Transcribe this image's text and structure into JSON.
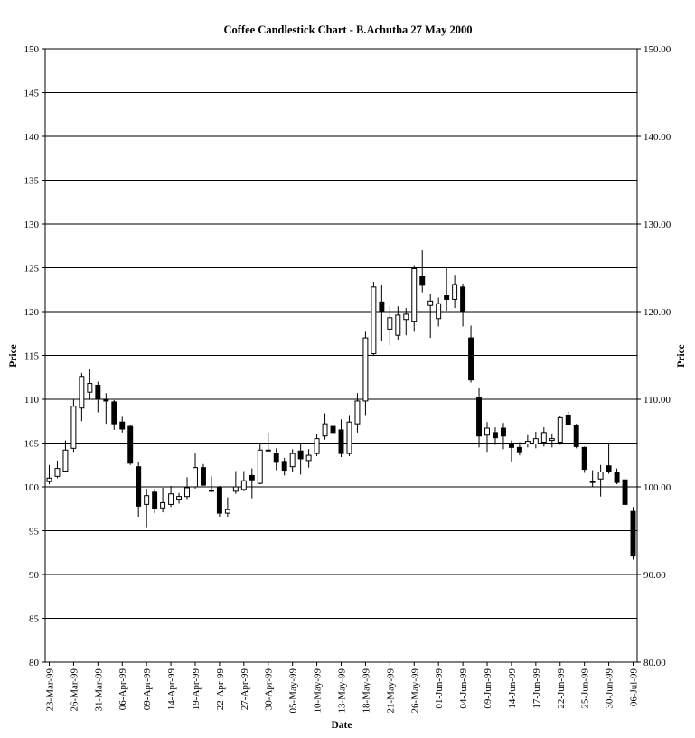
{
  "chart_data": {
    "type": "candlestick",
    "title": "Coffee Candlestick Chart - B.Achutha 27 May 2000",
    "xlabel": "Date",
    "ylabel_left": "Price",
    "ylabel_right": "Price",
    "ylim": [
      80,
      150
    ],
    "ytick_step": 5,
    "left_tick_labels": [
      "80",
      "85",
      "90",
      "95",
      "100",
      "105",
      "110",
      "115",
      "120",
      "125",
      "130",
      "135",
      "140",
      "145",
      "150"
    ],
    "right_tick_labels": [
      "80.00",
      "90.00",
      "100.00",
      "110.00",
      "120.00",
      "130.00",
      "140.00",
      "150.00"
    ],
    "x_tick_labels": [
      "23-Mar-99",
      "26-Mar-99",
      "31-Mar-99",
      "06-Apr-99",
      "09-Apr-99",
      "14-Apr-99",
      "19-Apr-99",
      "22-Apr-99",
      "27-Apr-99",
      "30-Apr-99",
      "05-May-99",
      "10-May-99",
      "13-May-99",
      "18-May-99",
      "21-May-99",
      "26-May-99",
      "01-Jun-99",
      "04-Jun-99",
      "09-Jun-99",
      "14-Jun-99",
      "17-Jun-99",
      "22-Jun-99",
      "25-Jun-99",
      "30-Jun-99",
      "06-Jul-99"
    ],
    "grid": true,
    "candles": [
      {
        "o": 100.6,
        "h": 102.5,
        "l": 100.3,
        "c": 101.0
      },
      {
        "o": 101.2,
        "h": 103.0,
        "l": 101.0,
        "c": 102.1
      },
      {
        "o": 101.8,
        "h": 105.3,
        "l": 101.7,
        "c": 104.2
      },
      {
        "o": 104.4,
        "h": 110.0,
        "l": 104.0,
        "c": 109.2
      },
      {
        "o": 109.0,
        "h": 113.0,
        "l": 107.5,
        "c": 112.6
      },
      {
        "o": 110.8,
        "h": 113.5,
        "l": 110.0,
        "c": 111.8
      },
      {
        "o": 111.6,
        "h": 112.0,
        "l": 108.5,
        "c": 110.0
      },
      {
        "o": 110.0,
        "h": 110.7,
        "l": 107.2,
        "c": 109.8
      },
      {
        "o": 109.7,
        "h": 109.9,
        "l": 106.5,
        "c": 107.2
      },
      {
        "o": 107.4,
        "h": 108.0,
        "l": 106.2,
        "c": 106.6
      },
      {
        "o": 106.9,
        "h": 107.1,
        "l": 102.5,
        "c": 102.7
      },
      {
        "o": 102.3,
        "h": 102.9,
        "l": 96.6,
        "c": 97.8
      },
      {
        "o": 98.0,
        "h": 99.8,
        "l": 95.4,
        "c": 99.0
      },
      {
        "o": 99.4,
        "h": 99.8,
        "l": 97.0,
        "c": 97.5
      },
      {
        "o": 97.6,
        "h": 99.9,
        "l": 97.1,
        "c": 98.2
      },
      {
        "o": 98.0,
        "h": 100.1,
        "l": 97.7,
        "c": 99.2
      },
      {
        "o": 98.6,
        "h": 99.3,
        "l": 98.1,
        "c": 98.9
      },
      {
        "o": 98.9,
        "h": 101.1,
        "l": 98.6,
        "c": 99.9
      },
      {
        "o": 100.0,
        "h": 103.8,
        "l": 99.8,
        "c": 102.2
      },
      {
        "o": 102.2,
        "h": 102.6,
        "l": 100.1,
        "c": 100.2
      },
      {
        "o": 99.5,
        "h": 101.2,
        "l": 99.4,
        "c": 99.6
      },
      {
        "o": 99.9,
        "h": 100.1,
        "l": 96.6,
        "c": 97.0
      },
      {
        "o": 97.0,
        "h": 98.8,
        "l": 96.6,
        "c": 97.4
      },
      {
        "o": 99.5,
        "h": 101.8,
        "l": 99.2,
        "c": 100.0
      },
      {
        "o": 99.7,
        "h": 101.8,
        "l": 99.5,
        "c": 100.7
      },
      {
        "o": 101.3,
        "h": 102.1,
        "l": 98.7,
        "c": 100.8
      },
      {
        "o": 100.4,
        "h": 105.0,
        "l": 100.3,
        "c": 104.2
      },
      {
        "o": 104.2,
        "h": 106.2,
        "l": 104.0,
        "c": 104.1
      },
      {
        "o": 103.8,
        "h": 104.4,
        "l": 101.9,
        "c": 102.8
      },
      {
        "o": 102.9,
        "h": 103.3,
        "l": 101.3,
        "c": 101.9
      },
      {
        "o": 102.3,
        "h": 104.3,
        "l": 101.7,
        "c": 103.8
      },
      {
        "o": 104.1,
        "h": 104.9,
        "l": 101.4,
        "c": 103.2
      },
      {
        "o": 103.0,
        "h": 104.3,
        "l": 102.2,
        "c": 103.6
      },
      {
        "o": 103.8,
        "h": 106.0,
        "l": 103.5,
        "c": 105.5
      },
      {
        "o": 105.8,
        "h": 108.4,
        "l": 105.4,
        "c": 107.2
      },
      {
        "o": 106.9,
        "h": 107.8,
        "l": 105.8,
        "c": 106.2
      },
      {
        "o": 106.5,
        "h": 107.7,
        "l": 103.4,
        "c": 103.8
      },
      {
        "o": 103.8,
        "h": 108.2,
        "l": 103.5,
        "c": 107.4
      },
      {
        "o": 107.2,
        "h": 110.7,
        "l": 106.2,
        "c": 109.8
      },
      {
        "o": 109.8,
        "h": 117.8,
        "l": 108.2,
        "c": 117.0
      },
      {
        "o": 115.2,
        "h": 123.4,
        "l": 115.0,
        "c": 122.8
      },
      {
        "o": 121.1,
        "h": 123.0,
        "l": 116.6,
        "c": 120.0
      },
      {
        "o": 118.0,
        "h": 120.6,
        "l": 116.2,
        "c": 119.3
      },
      {
        "o": 117.3,
        "h": 120.6,
        "l": 116.8,
        "c": 119.6
      },
      {
        "o": 119.1,
        "h": 120.4,
        "l": 117.3,
        "c": 119.7
      },
      {
        "o": 118.9,
        "h": 125.3,
        "l": 117.8,
        "c": 124.9
      },
      {
        "o": 124.0,
        "h": 127.0,
        "l": 122.2,
        "c": 123.0
      },
      {
        "o": 120.7,
        "h": 122.0,
        "l": 117.0,
        "c": 121.2
      },
      {
        "o": 119.2,
        "h": 121.6,
        "l": 118.3,
        "c": 120.9
      },
      {
        "o": 121.8,
        "h": 125.0,
        "l": 120.1,
        "c": 121.4
      },
      {
        "o": 121.4,
        "h": 124.2,
        "l": 120.4,
        "c": 123.1
      },
      {
        "o": 122.8,
        "h": 123.2,
        "l": 118.3,
        "c": 120.1
      },
      {
        "o": 117.0,
        "h": 118.4,
        "l": 111.9,
        "c": 112.2
      },
      {
        "o": 110.2,
        "h": 111.3,
        "l": 104.5,
        "c": 105.8
      },
      {
        "o": 105.9,
        "h": 107.4,
        "l": 104.0,
        "c": 106.7
      },
      {
        "o": 106.2,
        "h": 106.8,
        "l": 104.8,
        "c": 105.6
      },
      {
        "o": 106.7,
        "h": 107.3,
        "l": 104.3,
        "c": 105.8
      },
      {
        "o": 104.9,
        "h": 105.3,
        "l": 102.9,
        "c": 104.5
      },
      {
        "o": 104.5,
        "h": 105.1,
        "l": 103.6,
        "c": 104.0
      },
      {
        "o": 104.9,
        "h": 105.9,
        "l": 104.5,
        "c": 105.2
      },
      {
        "o": 104.9,
        "h": 106.3,
        "l": 104.4,
        "c": 105.5
      },
      {
        "o": 105.1,
        "h": 106.8,
        "l": 104.6,
        "c": 106.2
      },
      {
        "o": 105.3,
        "h": 106.1,
        "l": 104.5,
        "c": 105.5
      },
      {
        "o": 105.1,
        "h": 108.1,
        "l": 104.8,
        "c": 107.9
      },
      {
        "o": 108.2,
        "h": 108.6,
        "l": 107.0,
        "c": 107.1
      },
      {
        "o": 107.0,
        "h": 107.2,
        "l": 104.4,
        "c": 104.6
      },
      {
        "o": 104.5,
        "h": 104.6,
        "l": 101.6,
        "c": 102.0
      },
      {
        "o": 100.5,
        "h": 101.9,
        "l": 100.0,
        "c": 100.6
      },
      {
        "o": 100.9,
        "h": 102.5,
        "l": 98.9,
        "c": 101.7
      },
      {
        "o": 102.4,
        "h": 105.0,
        "l": 101.5,
        "c": 101.7
      },
      {
        "o": 101.6,
        "h": 102.1,
        "l": 100.3,
        "c": 100.5
      },
      {
        "o": 100.8,
        "h": 101.0,
        "l": 97.7,
        "c": 98.0
      },
      {
        "o": 97.2,
        "h": 97.7,
        "l": 91.7,
        "c": 92.1
      }
    ]
  }
}
